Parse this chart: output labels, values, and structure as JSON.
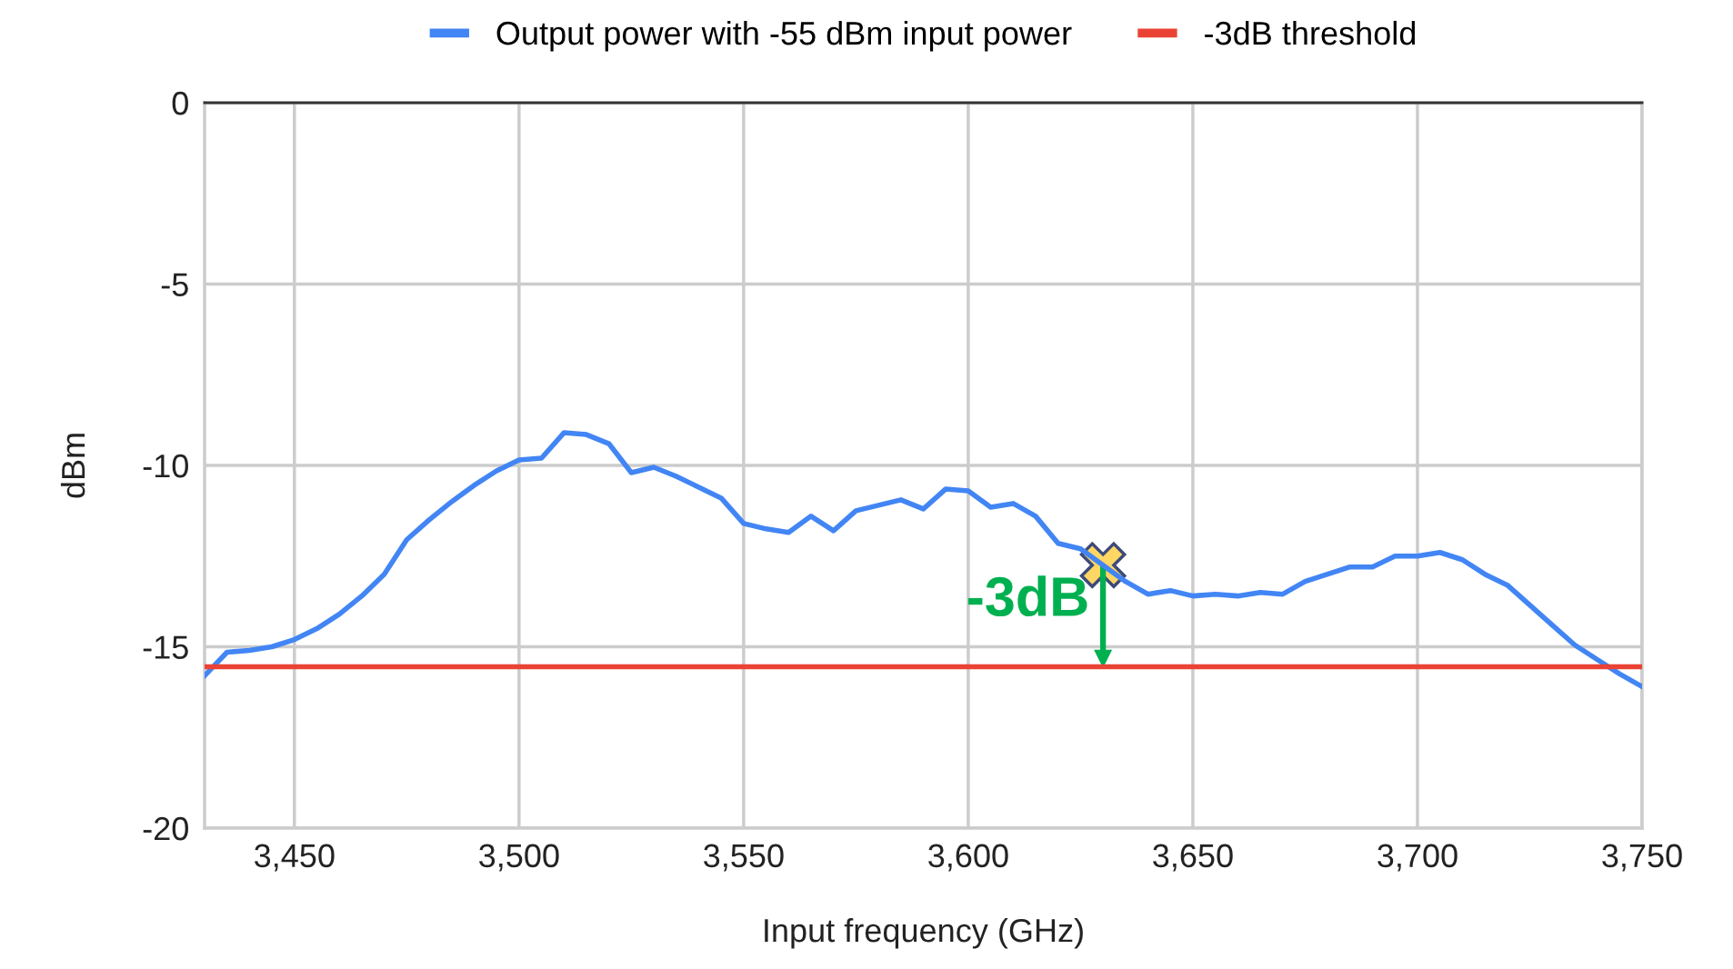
{
  "chart_data": {
    "type": "line",
    "xlabel": "Input frequency (GHz)",
    "ylabel": "dBm",
    "xlim": [
      3430,
      3750
    ],
    "ylim": [
      -20,
      0
    ],
    "xticks": [
      {
        "value": 3450,
        "label": "3,450"
      },
      {
        "value": 3500,
        "label": "3,500"
      },
      {
        "value": 3550,
        "label": "3,550"
      },
      {
        "value": 3600,
        "label": "3,600"
      },
      {
        "value": 3650,
        "label": "3,650"
      },
      {
        "value": 3700,
        "label": "3,700"
      },
      {
        "value": 3750,
        "label": "3,750"
      }
    ],
    "yticks": [
      0,
      -5,
      -10,
      -15,
      -20
    ],
    "grid": true,
    "legend": "top",
    "marker": "none",
    "line_style": "solid",
    "series": [
      {
        "name": "Output power with -55 dBm input power",
        "color": "#4285f4",
        "x": [
          3430,
          3435,
          3440,
          3445,
          3450,
          3455,
          3460,
          3465,
          3470,
          3475,
          3480,
          3485,
          3490,
          3495,
          3500,
          3505,
          3510,
          3515,
          3520,
          3525,
          3530,
          3535,
          3540,
          3545,
          3550,
          3555,
          3560,
          3565,
          3570,
          3575,
          3580,
          3585,
          3590,
          3595,
          3600,
          3605,
          3610,
          3615,
          3620,
          3625,
          3630,
          3635,
          3640,
          3645,
          3650,
          3655,
          3660,
          3665,
          3670,
          3675,
          3680,
          3685,
          3690,
          3695,
          3700,
          3705,
          3710,
          3715,
          3720,
          3725,
          3730,
          3735,
          3740,
          3745,
          3750
        ],
        "values": [
          -15.8,
          -15.15,
          -15.1,
          -15.0,
          -14.8,
          -14.5,
          -14.1,
          -13.6,
          -13.0,
          -12.05,
          -11.5,
          -11.0,
          -10.55,
          -10.15,
          -9.85,
          -9.8,
          -9.1,
          -9.15,
          -9.4,
          -10.2,
          -10.05,
          -10.3,
          -10.6,
          -10.9,
          -11.6,
          -11.75,
          -11.85,
          -11.4,
          -11.8,
          -11.25,
          -11.1,
          -10.95,
          -11.2,
          -10.65,
          -10.7,
          -11.15,
          -11.05,
          -11.4,
          -12.15,
          -12.3,
          -12.75,
          -13.2,
          -13.55,
          -13.45,
          -13.6,
          -13.55,
          -13.6,
          -13.5,
          -13.55,
          -13.2,
          -13.0,
          -12.8,
          -12.8,
          -12.5,
          -12.5,
          -12.4,
          -12.6,
          -13.0,
          -13.3,
          -13.85,
          -14.4,
          -14.95,
          -15.35,
          -15.75,
          -16.1
        ]
      },
      {
        "name": "-3dB threshold",
        "color": "#ea4335",
        "x": [
          3430,
          3750
        ],
        "values": [
          -15.55,
          -15.55
        ]
      }
    ],
    "annotations": [
      {
        "text": "-3dB",
        "x": 3630,
        "y": -12.75
      }
    ]
  }
}
